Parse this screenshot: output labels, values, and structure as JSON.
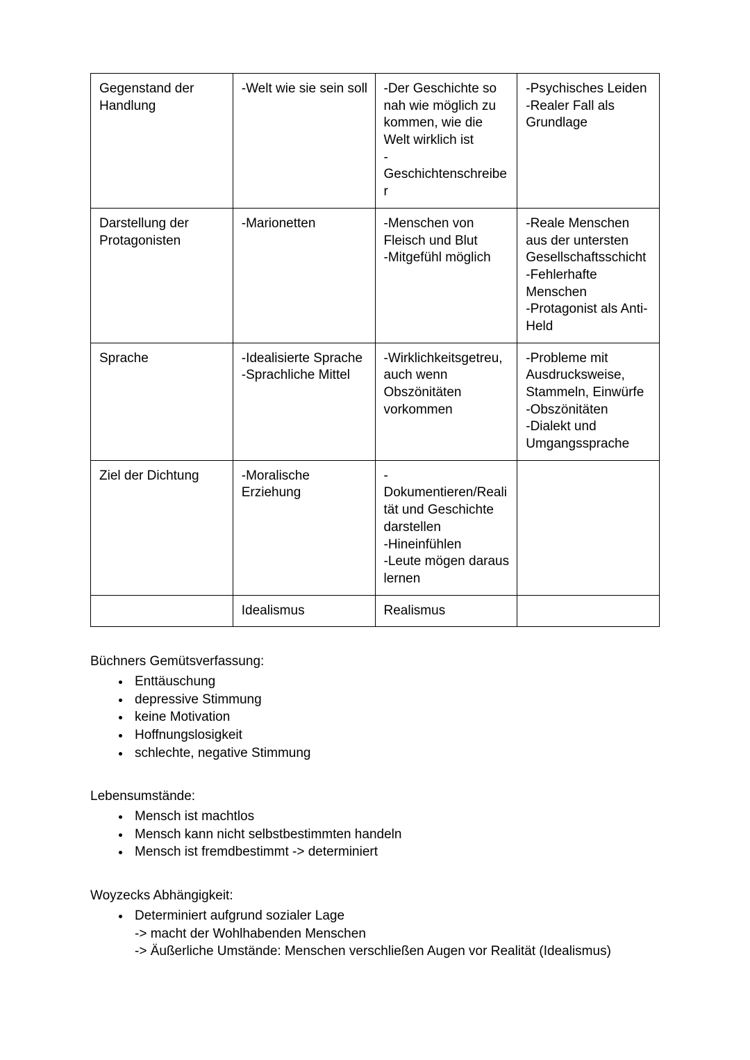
{
  "table": {
    "col_widths_pct": [
      25,
      25,
      25,
      25
    ],
    "rows": [
      [
        "Gegenstand der Handlung",
        "-Welt wie sie sein soll",
        "-Der Geschichte so nah wie möglich zu kommen, wie die Welt wirklich ist\n-Geschichtenschreiber",
        "-Psychisches Leiden\n-Realer Fall als Grundlage"
      ],
      [
        "Darstellung der Protagonisten",
        "-Marionetten",
        "-Menschen von Fleisch und Blut\n-Mitgefühl möglich",
        "-Reale Menschen aus der untersten Gesellschaftsschicht\n-Fehlerhafte Menschen\n-Protagonist als Anti-Held"
      ],
      [
        "Sprache",
        "-Idealisierte Sprache\n-Sprachliche Mittel",
        "-Wirklichkeitsgetreu, auch wenn Obszönitäten vorkommen",
        "-Probleme mit Ausdrucksweise, Stammeln, Einwürfe\n-Obszönitäten\n-Dialekt und Umgangssprache"
      ],
      [
        "Ziel der Dichtung",
        "-Moralische Erziehung",
        "-Dokumentieren/Realität und Geschichte darstellen\n-Hineinfühlen\n-Leute mögen daraus lernen",
        ""
      ],
      [
        "",
        "Idealismus",
        "Realismus",
        ""
      ]
    ]
  },
  "sections": [
    {
      "heading": "Büchners Gemütsverfassung:",
      "items": [
        "Enttäuschung",
        "depressive Stimmung",
        "keine Motivation",
        "Hoffnungslosigkeit",
        "schlechte, negative Stimmung"
      ]
    },
    {
      "heading": "Lebensumstände:",
      "items": [
        "Mensch ist machtlos",
        "Mensch kann nicht selbstbestimmten handeln",
        "Mensch ist fremdbestimmt -> determiniert"
      ]
    },
    {
      "heading": "Woyzecks Abhängigkeit:",
      "items": [
        "Determiniert aufgrund sozialer Lage"
      ],
      "sublines": [
        "-> macht der Wohlhabenden Menschen",
        "-> Äußerliche Umstände: Menschen verschließen Augen vor Realität (Idealismus)"
      ]
    }
  ]
}
